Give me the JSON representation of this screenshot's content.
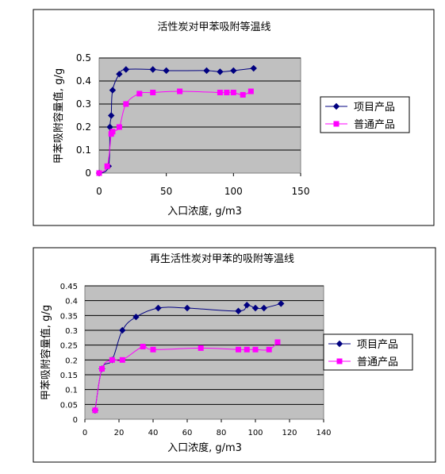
{
  "colors": {
    "plot_bg": "#c0c0c0",
    "project_series": "#000080",
    "normal_series": "#ff00ff",
    "frame": "#000000"
  },
  "chart_data": [
    {
      "type": "line",
      "title": "活性炭对甲苯吸附等温线",
      "xlabel": "入口浓度, g/m3",
      "ylabel": "甲苯吸附容量值, g/g",
      "xlim": [
        0,
        150
      ],
      "ylim": [
        0,
        0.5
      ],
      "xticks": [
        "0",
        "50",
        "100",
        "150"
      ],
      "yticks": [
        "0",
        "0.1",
        "0.2",
        "0.3",
        "0.4",
        "0.5"
      ],
      "grid": true,
      "legend_position": "right",
      "series": [
        {
          "name": "项目产品",
          "marker": "diamond",
          "x": [
            0,
            7,
            8,
            9,
            10,
            15,
            20,
            40,
            50,
            80,
            90,
            100,
            115
          ],
          "y": [
            0,
            0.03,
            0.2,
            0.25,
            0.36,
            0.43,
            0.45,
            0.45,
            0.445,
            0.445,
            0.44,
            0.445,
            0.455
          ]
        },
        {
          "name": "普通产品",
          "marker": "square",
          "x": [
            0,
            6,
            9,
            10,
            15,
            20,
            30,
            40,
            60,
            90,
            95,
            100,
            107,
            113
          ],
          "y": [
            0,
            0.03,
            0.17,
            0.18,
            0.2,
            0.3,
            0.345,
            0.35,
            0.355,
            0.35,
            0.35,
            0.35,
            0.34,
            0.355
          ]
        }
      ]
    },
    {
      "type": "line",
      "title": "再生活性炭对甲苯的吸附等温线",
      "xlabel": "入口浓度, g/m3",
      "ylabel": "甲苯吸附容量值, g/g",
      "xlim": [
        0,
        140
      ],
      "ylim": [
        0,
        0.45
      ],
      "xticks": [
        "0",
        "20",
        "40",
        "60",
        "80",
        "100",
        "120",
        "140"
      ],
      "yticks": [
        "0",
        "0.05",
        "0.1",
        "0.15",
        "0.2",
        "0.25",
        "0.3",
        "0.35",
        "0.4",
        "0.45"
      ],
      "grid": true,
      "legend_position": "right",
      "series": [
        {
          "name": "项目产品",
          "marker": "diamond",
          "x": [
            6,
            10,
            16,
            22,
            30,
            43,
            60,
            90,
            95,
            100,
            105,
            115
          ],
          "y": [
            0.03,
            0.17,
            0.2,
            0.3,
            0.345,
            0.375,
            0.375,
            0.365,
            0.385,
            0.375,
            0.375,
            0.39
          ]
        },
        {
          "name": "普通产品",
          "marker": "square",
          "x": [
            6,
            10,
            16,
            22,
            34,
            40,
            68,
            90,
            95,
            100,
            108,
            113
          ],
          "y": [
            0.03,
            0.17,
            0.2,
            0.2,
            0.245,
            0.235,
            0.24,
            0.235,
            0.235,
            0.235,
            0.235,
            0.26
          ]
        }
      ]
    }
  ]
}
